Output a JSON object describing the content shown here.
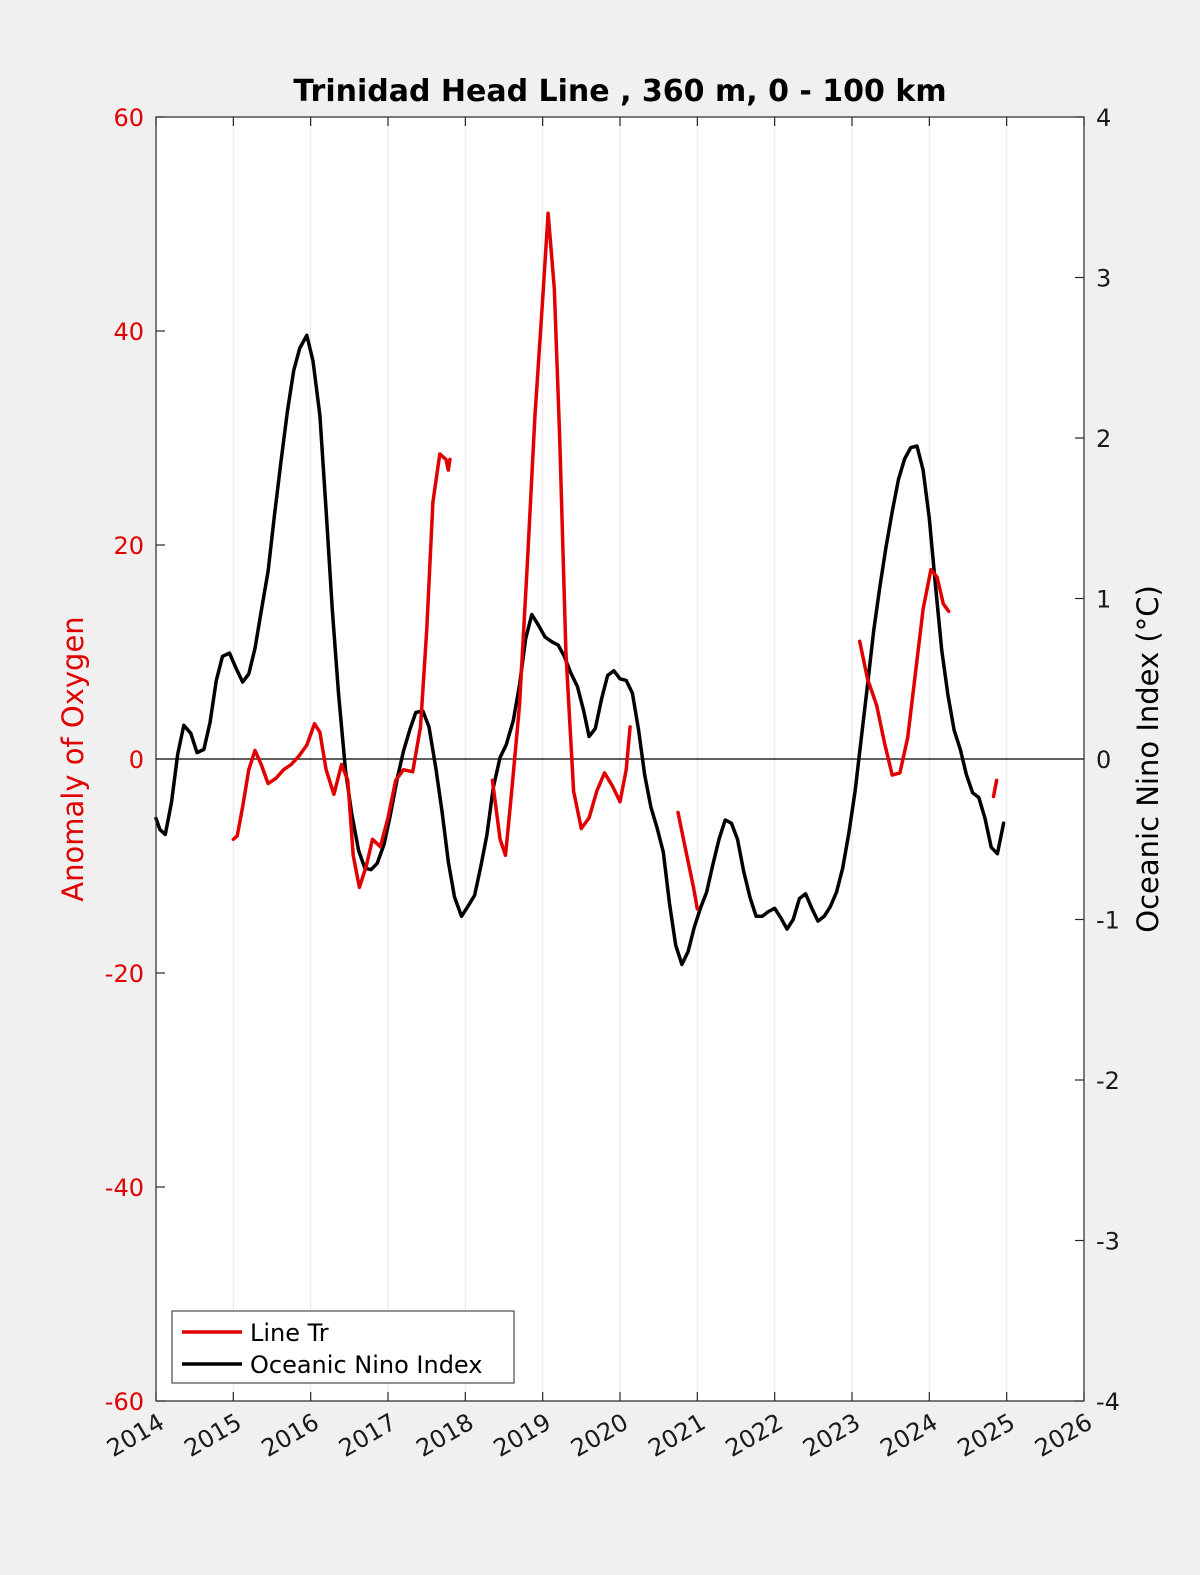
{
  "chart_data": {
    "type": "line",
    "title": "Trinidad Head Line , 360 m, 0 - 100 km",
    "ylabel_left": "Anomaly of Oxygen",
    "ylabel_right": "Oceanic Nino Index (°C)",
    "xlim": [
      2014,
      2026
    ],
    "ylim_left": [
      -60,
      60
    ],
    "ylim_right": [
      -4,
      4
    ],
    "xticks": [
      "2014",
      "2015",
      "2016",
      "2017",
      "2018",
      "2019",
      "2020",
      "2021",
      "2022",
      "2023",
      "2024",
      "2025",
      "2026"
    ],
    "yticks_left": [
      "60",
      "40",
      "20",
      "0",
      "-20",
      "-40",
      "-60"
    ],
    "yticks_right": [
      "4",
      "3",
      "2",
      "1",
      "0",
      "-1",
      "-2",
      "-3",
      "-4"
    ],
    "grid": "vertical",
    "zero_line": true,
    "legend": {
      "placement": "bottom-left",
      "entries": [
        "Line Tr",
        "Oceanic Nino Index"
      ]
    },
    "colors": {
      "line_tr": "#e00000",
      "oni": "#000000",
      "left_axis": "#e00000"
    },
    "series": [
      {
        "name": "Line Tr",
        "axis": "left",
        "segments": [
          [
            [
              2015.0,
              -7.5
            ],
            [
              2015.05,
              -7.2
            ],
            [
              2015.12,
              -4.5
            ],
            [
              2015.2,
              -1.0
            ],
            [
              2015.28,
              0.8
            ],
            [
              2015.36,
              -0.5
            ],
            [
              2015.45,
              -2.3
            ],
            [
              2015.55,
              -1.8
            ],
            [
              2015.65,
              -1.0
            ],
            [
              2015.75,
              -0.5
            ],
            [
              2015.85,
              0.3
            ],
            [
              2015.95,
              1.3
            ],
            [
              2016.05,
              3.3
            ],
            [
              2016.12,
              2.5
            ],
            [
              2016.2,
              -1.0
            ],
            [
              2016.3,
              -3.3
            ],
            [
              2016.4,
              -0.5
            ],
            [
              2016.48,
              -2.0
            ],
            [
              2016.55,
              -9.0
            ],
            [
              2016.63,
              -12.0
            ],
            [
              2016.72,
              -10.0
            ],
            [
              2016.8,
              -7.5
            ],
            [
              2016.9,
              -8.2
            ],
            [
              2017.0,
              -5.5
            ],
            [
              2017.1,
              -2.0
            ],
            [
              2017.2,
              -1.0
            ],
            [
              2017.32,
              -1.2
            ],
            [
              2017.42,
              3.0
            ],
            [
              2017.5,
              12.0
            ],
            [
              2017.58,
              24.0
            ],
            [
              2017.67,
              28.5
            ],
            [
              2017.75,
              28.0
            ],
            [
              2017.78,
              27.0
            ],
            [
              2017.8,
              28.0
            ]
          ],
          [
            [
              2018.35,
              -2.0
            ],
            [
              2018.45,
              -7.5
            ],
            [
              2018.52,
              -9.0
            ],
            [
              2018.6,
              -3.0
            ],
            [
              2018.7,
              5.0
            ],
            [
              2018.8,
              18.0
            ],
            [
              2018.9,
              32.0
            ],
            [
              2019.0,
              43.0
            ],
            [
              2019.07,
              51.0
            ],
            [
              2019.15,
              44.0
            ],
            [
              2019.22,
              30.0
            ],
            [
              2019.3,
              10.0
            ],
            [
              2019.4,
              -3.0
            ],
            [
              2019.5,
              -6.5
            ],
            [
              2019.6,
              -5.5
            ],
            [
              2019.7,
              -3.0
            ],
            [
              2019.8,
              -1.3
            ],
            [
              2019.9,
              -2.5
            ],
            [
              2020.0,
              -4.0
            ],
            [
              2020.08,
              -1.0
            ],
            [
              2020.13,
              3.0
            ]
          ],
          [
            [
              2020.75,
              -5.0
            ],
            [
              2020.85,
              -8.5
            ],
            [
              2020.95,
              -12.0
            ],
            [
              2021.0,
              -14.0
            ]
          ],
          [
            [
              2023.1,
              11.0
            ],
            [
              2023.2,
              7.5
            ],
            [
              2023.32,
              5.0
            ],
            [
              2023.42,
              1.5
            ],
            [
              2023.52,
              -1.5
            ],
            [
              2023.62,
              -1.3
            ],
            [
              2023.72,
              2.0
            ],
            [
              2023.82,
              8.0
            ],
            [
              2023.92,
              14.0
            ],
            [
              2024.02,
              17.7
            ],
            [
              2024.1,
              17.0
            ],
            [
              2024.18,
              14.5
            ],
            [
              2024.25,
              13.8
            ]
          ],
          [
            [
              2024.83,
              -3.5
            ],
            [
              2024.87,
              -2.0
            ]
          ]
        ]
      },
      {
        "name": "Oceanic Nino Index",
        "axis": "right",
        "segments": [
          [
            [
              2014.0,
              -0.37
            ],
            [
              2014.05,
              -0.44
            ],
            [
              2014.12,
              -0.47
            ],
            [
              2014.2,
              -0.27
            ],
            [
              2014.28,
              0.03
            ],
            [
              2014.36,
              0.21
            ],
            [
              2014.45,
              0.16
            ],
            [
              2014.53,
              0.04
            ],
            [
              2014.62,
              0.06
            ],
            [
              2014.7,
              0.23
            ],
            [
              2014.78,
              0.49
            ],
            [
              2014.86,
              0.64
            ],
            [
              2014.95,
              0.66
            ],
            [
              2015.03,
              0.57
            ],
            [
              2015.12,
              0.48
            ],
            [
              2015.2,
              0.53
            ],
            [
              2015.28,
              0.69
            ],
            [
              2015.36,
              0.92
            ],
            [
              2015.45,
              1.17
            ],
            [
              2015.53,
              1.51
            ],
            [
              2015.62,
              1.87
            ],
            [
              2015.7,
              2.17
            ],
            [
              2015.78,
              2.42
            ],
            [
              2015.86,
              2.56
            ],
            [
              2015.95,
              2.64
            ],
            [
              2016.03,
              2.48
            ],
            [
              2016.12,
              2.14
            ],
            [
              2016.2,
              1.55
            ],
            [
              2016.28,
              0.93
            ],
            [
              2016.36,
              0.41
            ],
            [
              2016.45,
              -0.07
            ],
            [
              2016.53,
              -0.34
            ],
            [
              2016.62,
              -0.57
            ],
            [
              2016.7,
              -0.68
            ],
            [
              2016.78,
              -0.69
            ],
            [
              2016.86,
              -0.65
            ],
            [
              2016.95,
              -0.53
            ],
            [
              2017.03,
              -0.35
            ],
            [
              2017.12,
              -0.12
            ],
            [
              2017.2,
              0.05
            ],
            [
              2017.28,
              0.18
            ],
            [
              2017.36,
              0.29
            ],
            [
              2017.45,
              0.3
            ],
            [
              2017.53,
              0.2
            ],
            [
              2017.62,
              -0.06
            ],
            [
              2017.7,
              -0.33
            ],
            [
              2017.78,
              -0.64
            ],
            [
              2017.86,
              -0.86
            ],
            [
              2017.95,
              -0.98
            ],
            [
              2018.03,
              -0.92
            ],
            [
              2018.12,
              -0.85
            ],
            [
              2018.2,
              -0.67
            ],
            [
              2018.28,
              -0.47
            ],
            [
              2018.36,
              -0.18
            ],
            [
              2018.45,
              0.01
            ],
            [
              2018.53,
              0.09
            ],
            [
              2018.62,
              0.24
            ],
            [
              2018.7,
              0.46
            ],
            [
              2018.78,
              0.75
            ],
            [
              2018.86,
              0.9
            ],
            [
              2018.95,
              0.83
            ],
            [
              2019.03,
              0.76
            ],
            [
              2019.12,
              0.73
            ],
            [
              2019.2,
              0.71
            ],
            [
              2019.28,
              0.64
            ],
            [
              2019.36,
              0.54
            ],
            [
              2019.45,
              0.45
            ],
            [
              2019.53,
              0.3
            ],
            [
              2019.6,
              0.14
            ],
            [
              2019.68,
              0.19
            ],
            [
              2019.76,
              0.37
            ],
            [
              2019.84,
              0.52
            ],
            [
              2019.92,
              0.55
            ],
            [
              2020.0,
              0.5
            ],
            [
              2020.08,
              0.49
            ],
            [
              2020.16,
              0.41
            ],
            [
              2020.24,
              0.18
            ],
            [
              2020.32,
              -0.1
            ],
            [
              2020.4,
              -0.3
            ],
            [
              2020.48,
              -0.43
            ],
            [
              2020.56,
              -0.58
            ],
            [
              2020.64,
              -0.9
            ],
            [
              2020.72,
              -1.16
            ],
            [
              2020.8,
              -1.28
            ],
            [
              2020.88,
              -1.2
            ],
            [
              2020.96,
              -1.05
            ],
            [
              2021.04,
              -0.93
            ],
            [
              2021.12,
              -0.83
            ],
            [
              2021.2,
              -0.66
            ],
            [
              2021.28,
              -0.5
            ],
            [
              2021.36,
              -0.38
            ],
            [
              2021.44,
              -0.4
            ],
            [
              2021.52,
              -0.5
            ],
            [
              2021.6,
              -0.7
            ],
            [
              2021.68,
              -0.86
            ],
            [
              2021.76,
              -0.98
            ],
            [
              2021.84,
              -0.98
            ],
            [
              2021.92,
              -0.95
            ],
            [
              2022.0,
              -0.93
            ],
            [
              2022.08,
              -0.99
            ],
            [
              2022.16,
              -1.06
            ],
            [
              2022.24,
              -1.0
            ],
            [
              2022.32,
              -0.87
            ],
            [
              2022.4,
              -0.84
            ],
            [
              2022.48,
              -0.93
            ],
            [
              2022.56,
              -1.01
            ],
            [
              2022.64,
              -0.98
            ],
            [
              2022.72,
              -0.92
            ],
            [
              2022.8,
              -0.83
            ],
            [
              2022.88,
              -0.68
            ],
            [
              2022.96,
              -0.46
            ],
            [
              2023.04,
              -0.2
            ],
            [
              2023.12,
              0.13
            ],
            [
              2023.2,
              0.46
            ],
            [
              2023.28,
              0.8
            ],
            [
              2023.36,
              1.07
            ],
            [
              2023.44,
              1.32
            ],
            [
              2023.52,
              1.54
            ],
            [
              2023.6,
              1.74
            ],
            [
              2023.68,
              1.87
            ],
            [
              2023.76,
              1.94
            ],
            [
              2023.84,
              1.95
            ],
            [
              2023.92,
              1.8
            ],
            [
              2024.0,
              1.5
            ],
            [
              2024.08,
              1.08
            ],
            [
              2024.16,
              0.68
            ],
            [
              2024.24,
              0.4
            ],
            [
              2024.32,
              0.18
            ],
            [
              2024.4,
              0.06
            ],
            [
              2024.48,
              -0.1
            ],
            [
              2024.56,
              -0.21
            ],
            [
              2024.64,
              -0.24
            ],
            [
              2024.72,
              -0.37
            ],
            [
              2024.8,
              -0.55
            ],
            [
              2024.88,
              -0.59
            ],
            [
              2024.96,
              -0.4
            ]
          ]
        ]
      }
    ]
  }
}
